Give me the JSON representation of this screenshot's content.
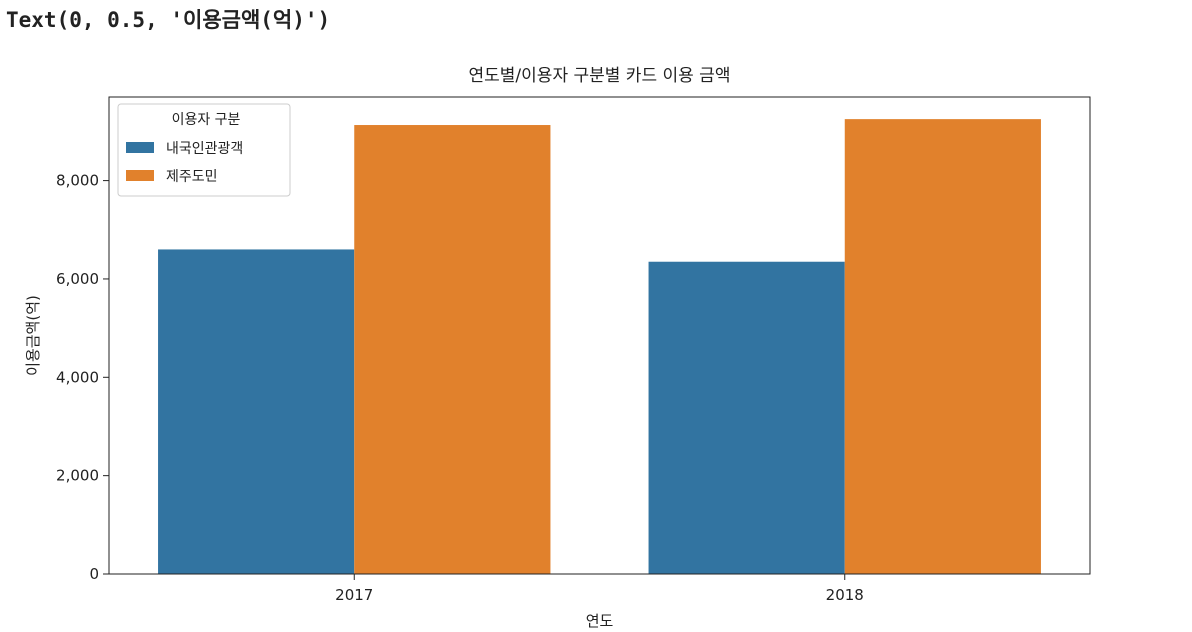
{
  "output_text": "Text(0, 0.5, '이용금액(억)')",
  "chart_data": {
    "type": "bar",
    "title": "연도별/이용자 구분별 카드 이용 금액",
    "xlabel": "연도",
    "ylabel": "이용금액(억)",
    "categories": [
      "2017",
      "2018"
    ],
    "series": [
      {
        "name": "내국인관광객",
        "color": "#3274a1",
        "values": [
          6600,
          6350
        ]
      },
      {
        "name": "제주도민",
        "color": "#e1812c",
        "values": [
          9130,
          9250
        ]
      }
    ],
    "ylim": [
      0,
      9700
    ],
    "yticks": [
      0,
      2000,
      4000,
      6000,
      8000
    ],
    "ytick_labels": [
      "0",
      "2,000",
      "4,000",
      "6,000",
      "8,000"
    ],
    "legend": {
      "title": "이용자 구분",
      "placement": "top-left"
    },
    "grid": false
  }
}
